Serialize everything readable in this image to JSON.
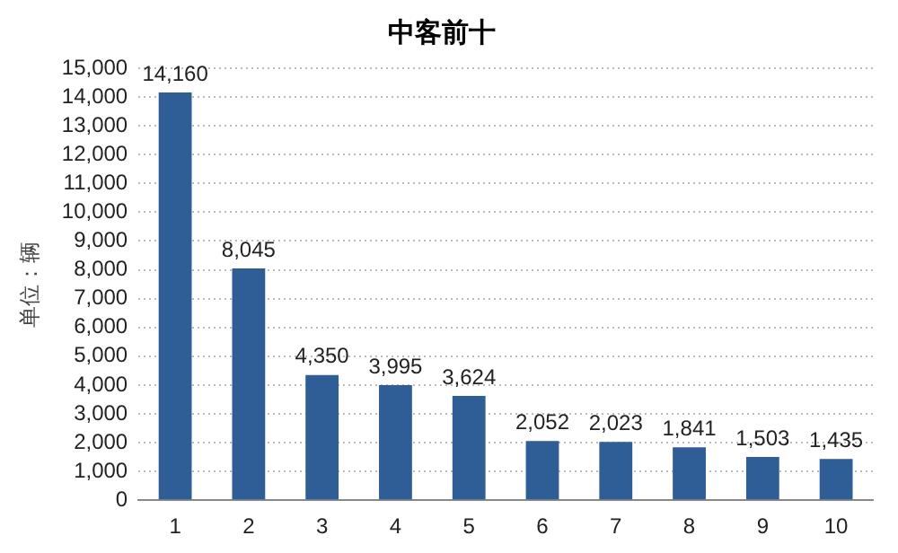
{
  "chart_data": {
    "type": "bar",
    "title": "中客前十",
    "ylabel": "单位：辆",
    "categories": [
      "1",
      "2",
      "3",
      "4",
      "5",
      "6",
      "7",
      "8",
      "9",
      "10"
    ],
    "values": [
      14160,
      8045,
      4350,
      3995,
      3624,
      2052,
      2023,
      1841,
      1503,
      1435
    ],
    "value_labels": [
      "14,160",
      "8,045",
      "4,350",
      "3,995",
      "3,624",
      "2,052",
      "2,023",
      "1,841",
      "1,503",
      "1,435"
    ],
    "color": "#2f5d95",
    "ylim": [
      0,
      15000
    ],
    "yticks": [
      0,
      {
        "value": 1000,
        "label": "1,000"
      },
      {
        "value": 2000,
        "label": "2,000"
      },
      {
        "value": 3000,
        "label": "3,000"
      },
      {
        "value": 4000,
        "label": "4,000"
      },
      {
        "value": 5000,
        "label": "5,000"
      },
      {
        "value": 6000,
        "label": "6,000"
      },
      {
        "value": 7000,
        "label": "7,000"
      },
      {
        "value": 8000,
        "label": "8,000"
      },
      {
        "value": 9000,
        "label": "9,000"
      },
      {
        "value": 10000,
        "label": "10,000"
      },
      {
        "value": 11000,
        "label": "11,000"
      },
      {
        "value": 12000,
        "label": "12,000"
      },
      {
        "value": 13000,
        "label": "13,000"
      },
      {
        "value": 14000,
        "label": "14,000"
      },
      {
        "value": 15000,
        "label": "15,000"
      }
    ],
    "grid": "y",
    "legend": false
  }
}
